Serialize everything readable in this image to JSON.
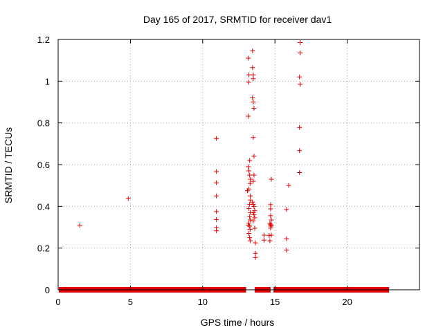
{
  "chart_data": {
    "type": "scatter",
    "title": "Day 165 of 2017, SRMTID for receiver dav1",
    "xlabel": "GPS time / hours",
    "ylabel": "SRMTID / TECUs",
    "xlim": [
      0,
      25
    ],
    "ylim": [
      0,
      1.2
    ],
    "xticks": [
      0,
      5,
      10,
      15,
      20
    ],
    "yticks": [
      0,
      0.2,
      0.4,
      0.6,
      0.8,
      1,
      1.2
    ],
    "xtick_labels": [
      "0",
      "5",
      "10",
      "15",
      "20"
    ],
    "ytick_labels": [
      "0",
      "0.2",
      "0.4",
      "0.6",
      "0.8",
      "1",
      "1.2"
    ],
    "grid": true,
    "marker": "+",
    "color": "#e00000",
    "baseline_segments": [
      [
        0.05,
        13.0
      ],
      [
        13.6,
        14.7
      ],
      [
        14.9,
        22.9
      ]
    ],
    "points": [
      [
        1.5,
        0.31
      ],
      [
        4.85,
        0.437
      ],
      [
        10.95,
        0.725
      ],
      [
        10.95,
        0.567
      ],
      [
        10.95,
        0.513
      ],
      [
        10.95,
        0.45
      ],
      [
        10.95,
        0.375
      ],
      [
        10.95,
        0.337
      ],
      [
        10.95,
        0.298
      ],
      [
        10.95,
        0.283
      ],
      [
        13.15,
        1.11
      ],
      [
        13.2,
        1.03
      ],
      [
        13.18,
        0.995
      ],
      [
        13.15,
        0.832
      ],
      [
        13.25,
        0.62
      ],
      [
        13.15,
        0.59
      ],
      [
        13.2,
        0.57
      ],
      [
        13.25,
        0.55
      ],
      [
        13.3,
        0.53
      ],
      [
        13.28,
        0.51
      ],
      [
        13.2,
        0.483
      ],
      [
        13.1,
        0.475
      ],
      [
        13.3,
        0.45
      ],
      [
        13.3,
        0.43
      ],
      [
        13.25,
        0.41
      ],
      [
        13.2,
        0.39
      ],
      [
        13.3,
        0.37
      ],
      [
        13.25,
        0.35
      ],
      [
        13.3,
        0.335
      ],
      [
        13.2,
        0.32
      ],
      [
        13.15,
        0.31
      ],
      [
        13.25,
        0.305
      ],
      [
        13.28,
        0.29
      ],
      [
        13.2,
        0.27
      ],
      [
        13.25,
        0.25
      ],
      [
        13.3,
        0.235
      ],
      [
        13.45,
        1.145
      ],
      [
        13.45,
        1.065
      ],
      [
        13.5,
        1.03
      ],
      [
        13.5,
        1.012
      ],
      [
        13.45,
        0.92
      ],
      [
        13.5,
        0.9
      ],
      [
        13.55,
        0.87
      ],
      [
        13.5,
        0.73
      ],
      [
        13.55,
        0.64
      ],
      [
        13.55,
        0.55
      ],
      [
        13.5,
        0.52
      ],
      [
        13.45,
        0.42
      ],
      [
        13.5,
        0.41
      ],
      [
        13.55,
        0.4
      ],
      [
        13.6,
        0.38
      ],
      [
        13.5,
        0.37
      ],
      [
        13.55,
        0.36
      ],
      [
        13.6,
        0.345
      ],
      [
        13.5,
        0.33
      ],
      [
        13.6,
        0.295
      ],
      [
        13.65,
        0.225
      ],
      [
        13.65,
        0.175
      ],
      [
        13.65,
        0.155
      ],
      [
        14.25,
        0.262
      ],
      [
        14.25,
        0.238
      ],
      [
        14.6,
        0.26
      ],
      [
        14.65,
        0.235
      ],
      [
        14.75,
        0.53
      ],
      [
        14.7,
        0.408
      ],
      [
        14.7,
        0.388
      ],
      [
        14.7,
        0.355
      ],
      [
        14.75,
        0.335
      ],
      [
        14.65,
        0.318
      ],
      [
        14.7,
        0.312
      ],
      [
        14.72,
        0.305
      ],
      [
        14.75,
        0.31
      ],
      [
        14.7,
        0.296
      ],
      [
        14.75,
        0.262
      ],
      [
        15.8,
        0.385
      ],
      [
        15.8,
        0.245
      ],
      [
        15.8,
        0.19
      ],
      [
        15.95,
        0.5
      ],
      [
        16.75,
        1.185
      ],
      [
        16.75,
        1.135
      ],
      [
        16.7,
        1.02
      ],
      [
        16.75,
        0.985
      ],
      [
        16.7,
        0.778
      ],
      [
        16.7,
        0.667
      ],
      [
        16.7,
        0.562
      ]
    ]
  }
}
